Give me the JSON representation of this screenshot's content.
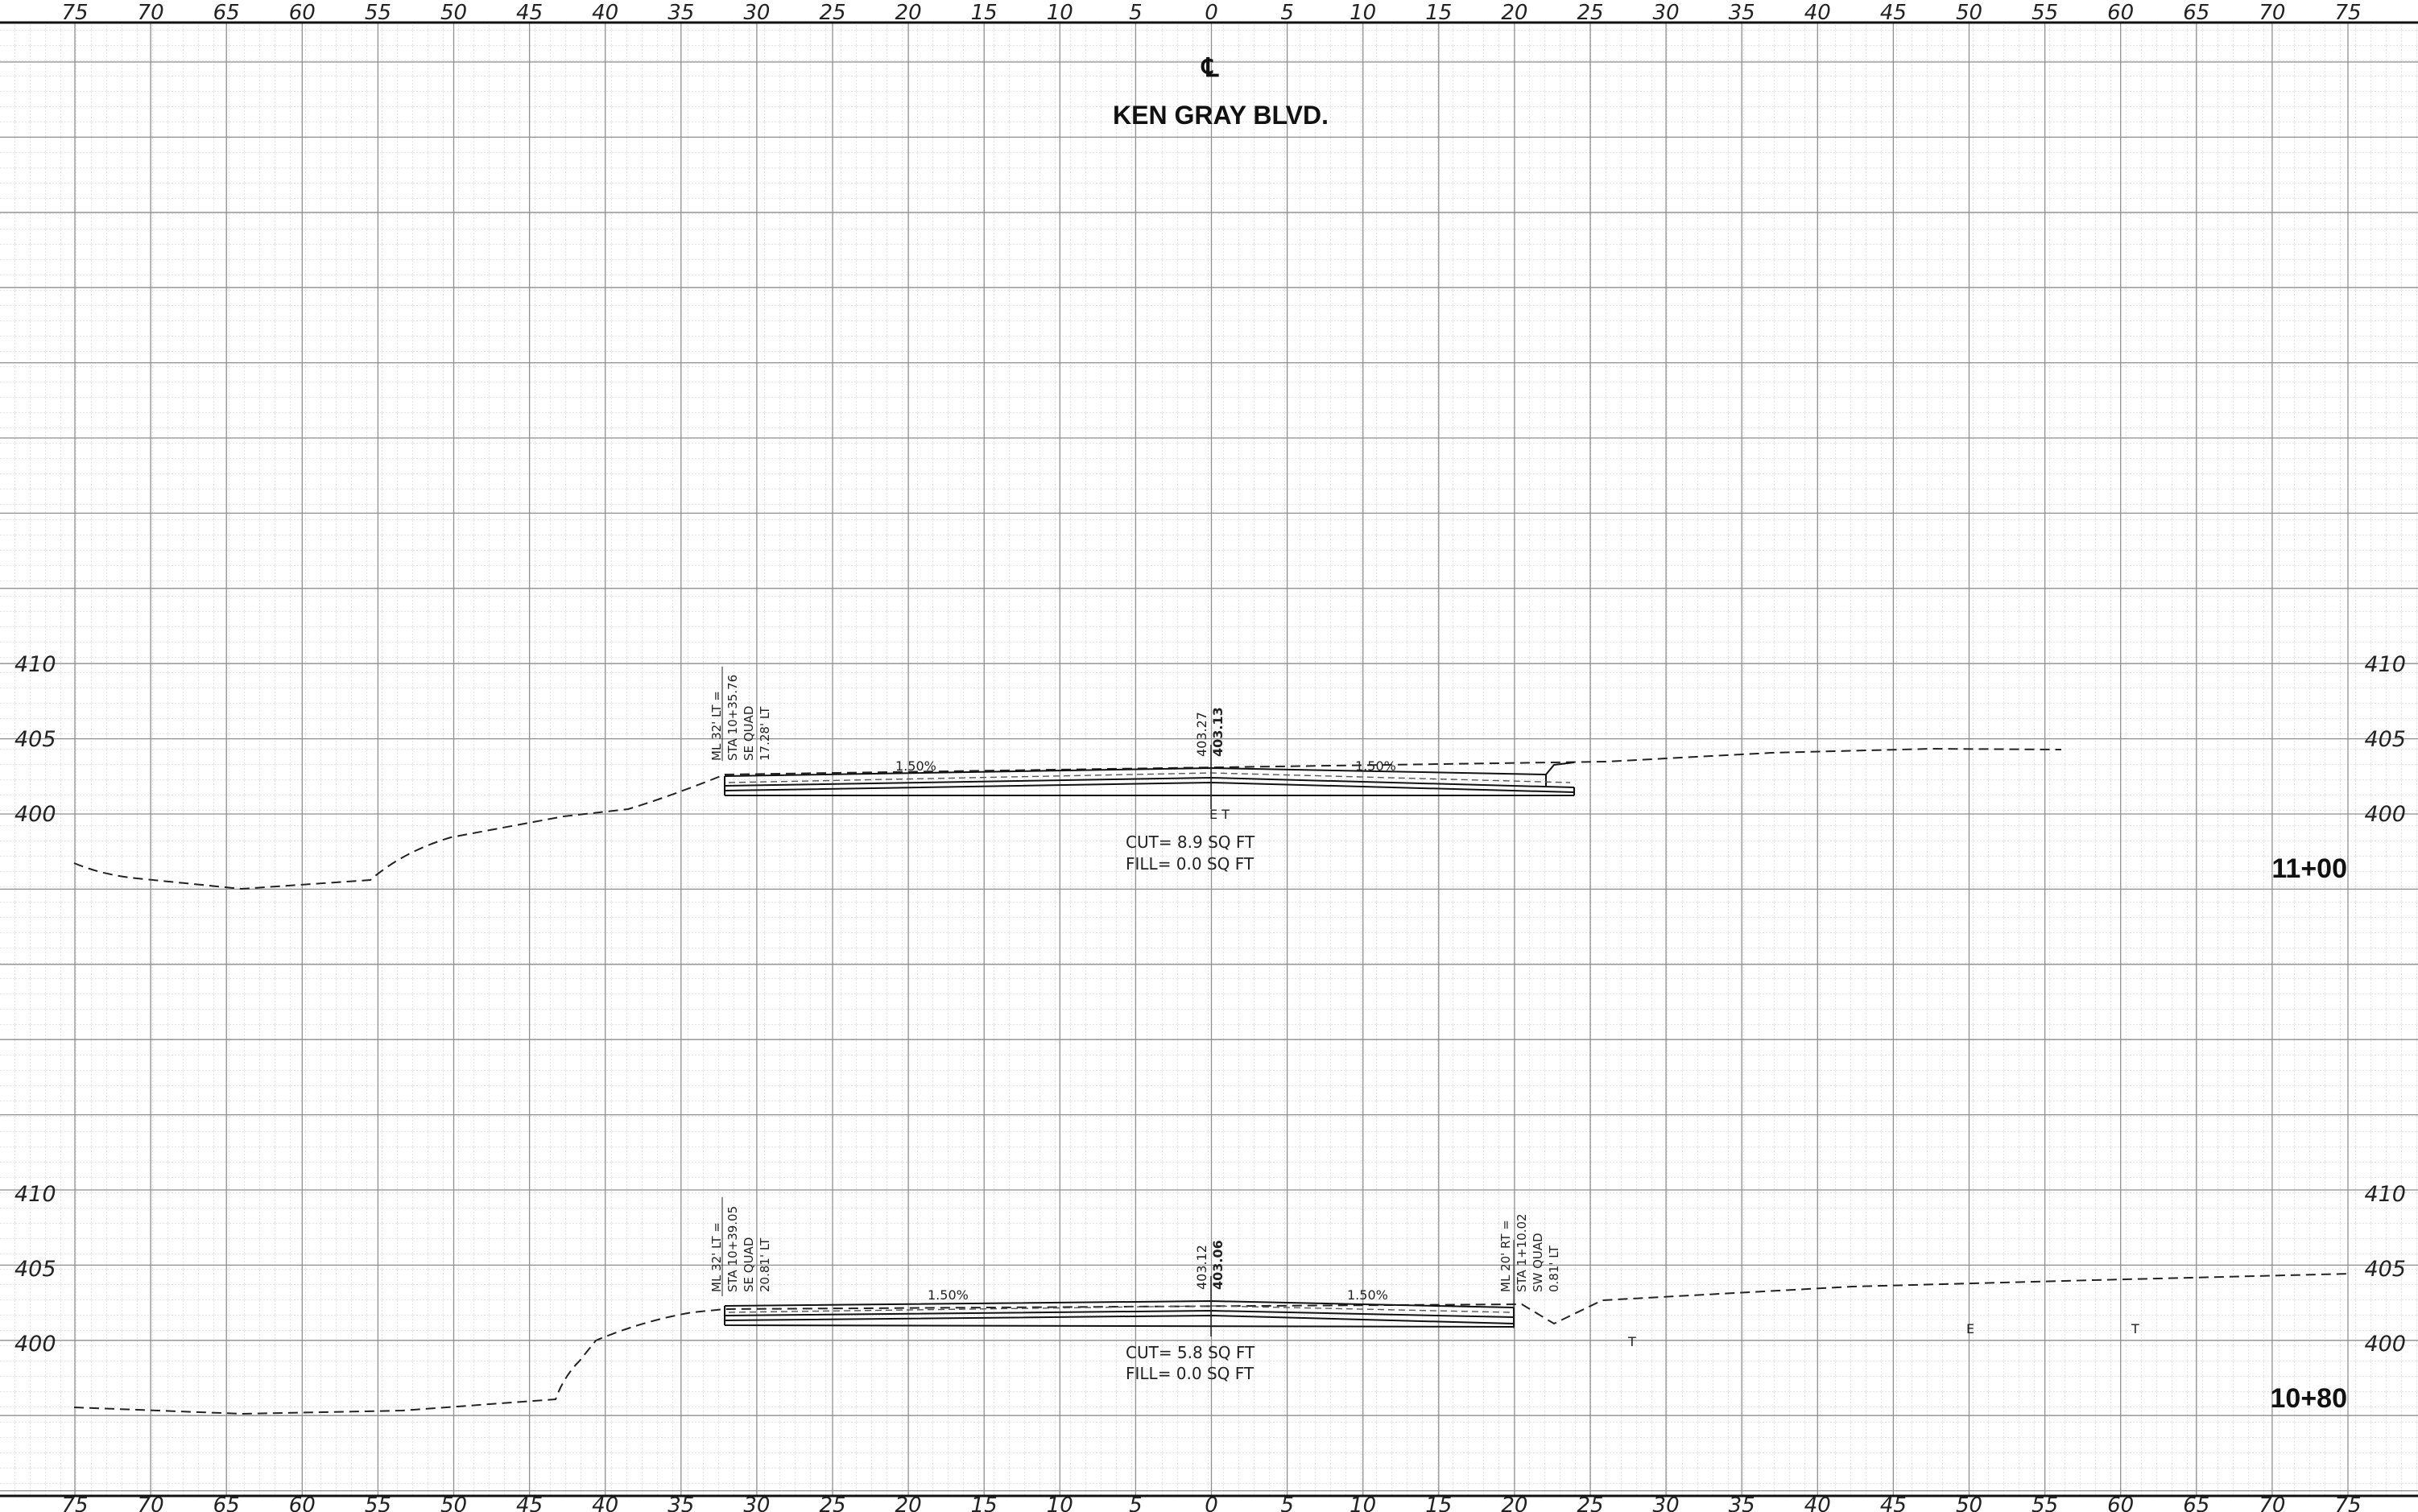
{
  "sheet": {
    "centerline_symbol": "℄",
    "title": "KEN GRAY BLVD.",
    "offset_ticks": [
      "75",
      "70",
      "65",
      "60",
      "55",
      "50",
      "45",
      "40",
      "35",
      "30",
      "25",
      "20",
      "15",
      "10",
      "5",
      "0",
      "5",
      "10",
      "15",
      "20",
      "25",
      "30",
      "35",
      "40",
      "45",
      "50",
      "55",
      "60",
      "65",
      "70",
      "75"
    ],
    "elevation_ticks": [
      "410",
      "405",
      "400"
    ]
  },
  "sections": [
    {
      "station": "11+00",
      "cut": "CUT= 8.9 SQ FT",
      "fill": "FILL= 0.0 SQ FT",
      "left_slope": "1.50%",
      "right_slope": "1.50%",
      "cl_elev_existing": "403.27",
      "cl_elev_proposed": "403.13",
      "left_note": [
        "ML 32' LT =",
        "STA 10+35.76",
        "SE QUAD",
        "17.28' LT"
      ],
      "utility_label": "E T"
    },
    {
      "station": "10+80",
      "cut": "CUT= 5.8 SQ FT",
      "fill": "FILL= 0.0 SQ FT",
      "left_slope": "1.50%",
      "right_slope": "1.50%",
      "cl_elev_existing": "403.12",
      "cl_elev_proposed": "403.06",
      "left_note": [
        "ML 32' LT =",
        "STA 10+39.05",
        "SE QUAD",
        "20.81' LT"
      ],
      "right_note": [
        "ML 20' RT =",
        "STA 1+10.02",
        "SW QUAD",
        "0.81' LT"
      ],
      "markers": [
        "T",
        "E",
        "T"
      ]
    }
  ]
}
